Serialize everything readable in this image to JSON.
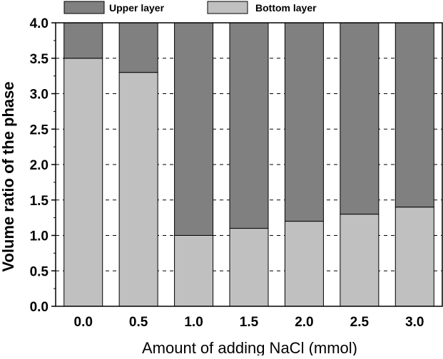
{
  "chart_data": {
    "type": "bar",
    "stacked": true,
    "categories": [
      "0.0",
      "0.5",
      "1.0",
      "1.5",
      "2.0",
      "2.5",
      "3.0"
    ],
    "series": [
      {
        "name": "Bottom layer",
        "values": [
          3.5,
          3.3,
          1.0,
          1.1,
          1.2,
          1.3,
          1.4
        ],
        "color": "#c0c0c0"
      },
      {
        "name": "Upper layer",
        "values": [
          0.5,
          0.7,
          3.0,
          2.9,
          2.8,
          2.7,
          2.6
        ],
        "color": "#808080"
      }
    ],
    "xlabel": "Amount of adding NaCl (mmol)",
    "ylabel": "Volume ratio of the phase",
    "ylim": [
      0,
      4.0
    ],
    "yticks": [
      "0.0",
      "0.5",
      "1.0",
      "1.5",
      "2.0",
      "2.5",
      "3.0",
      "3.5",
      "4.0"
    ],
    "grid": "horizontal dashed",
    "legend_placement": "top",
    "legend_order": [
      "Upper layer",
      "Bottom layer"
    ]
  }
}
